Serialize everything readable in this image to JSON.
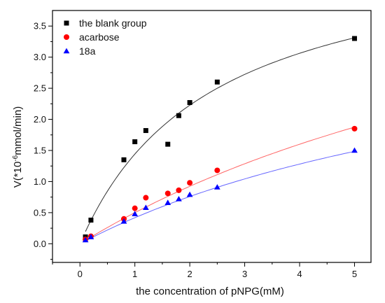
{
  "chart_data": {
    "type": "scatter",
    "title": "",
    "xlabel": "the concentration of pNPG(mM)",
    "ylabel": {
      "main": "V(*10",
      "sup": "-6",
      "rest": "mmol/min)"
    },
    "xlim": [
      -0.5,
      5.3
    ],
    "ylim": [
      -0.3,
      3.75
    ],
    "x_ticks": [
      0,
      1,
      2,
      3,
      4,
      5
    ],
    "y_ticks": [
      0.0,
      0.5,
      1.0,
      1.5,
      2.0,
      2.5,
      3.0,
      3.5
    ],
    "x_tick_labels": [
      "0",
      "1",
      "2",
      "3",
      "4",
      "5"
    ],
    "y_tick_labels": [
      "0.0",
      "0.5",
      "1.0",
      "1.5",
      "2.0",
      "2.5",
      "3.0",
      "3.5"
    ],
    "grid": false,
    "legend_position": "top-left",
    "series": [
      {
        "name": "the blank group",
        "marker": "square",
        "color": "#000000",
        "fit_color": "#333333",
        "x": [
          0.1,
          0.2,
          0.8,
          1.0,
          1.2,
          1.6,
          1.8,
          2.0,
          2.5,
          5.0
        ],
        "y": [
          0.11,
          0.38,
          1.35,
          1.64,
          1.82,
          1.6,
          2.06,
          2.27,
          2.6,
          3.3
        ],
        "fit": {
          "model": "michaelis-menten",
          "vmax": 4.9,
          "km": 2.4,
          "x_range": [
            0.1,
            5.0
          ]
        }
      },
      {
        "name": "acarbose",
        "marker": "circle",
        "color": "#ff0000",
        "fit_color": "#ff6666",
        "x": [
          0.1,
          0.2,
          0.8,
          1.0,
          1.2,
          1.6,
          1.8,
          2.0,
          2.5,
          5.0
        ],
        "y": [
          0.07,
          0.12,
          0.4,
          0.57,
          0.74,
          0.81,
          0.86,
          0.98,
          1.18,
          1.85
        ],
        "fit": {
          "model": "michaelis-menten",
          "vmax": 6.0,
          "km": 11.0,
          "x_range": [
            0.1,
            5.0
          ]
        }
      },
      {
        "name": "18a",
        "marker": "triangle",
        "color": "#0000ff",
        "fit_color": "#6666ff",
        "x": [
          0.1,
          0.2,
          0.8,
          1.0,
          1.2,
          1.6,
          1.8,
          2.0,
          2.5,
          5.0
        ],
        "y": [
          0.06,
          0.11,
          0.36,
          0.48,
          0.58,
          0.66,
          0.72,
          0.79,
          0.91,
          1.5
        ],
        "fit": {
          "model": "michaelis-menten",
          "vmax": 4.1,
          "km": 8.8,
          "x_range": [
            0.1,
            5.0
          ]
        }
      }
    ]
  }
}
